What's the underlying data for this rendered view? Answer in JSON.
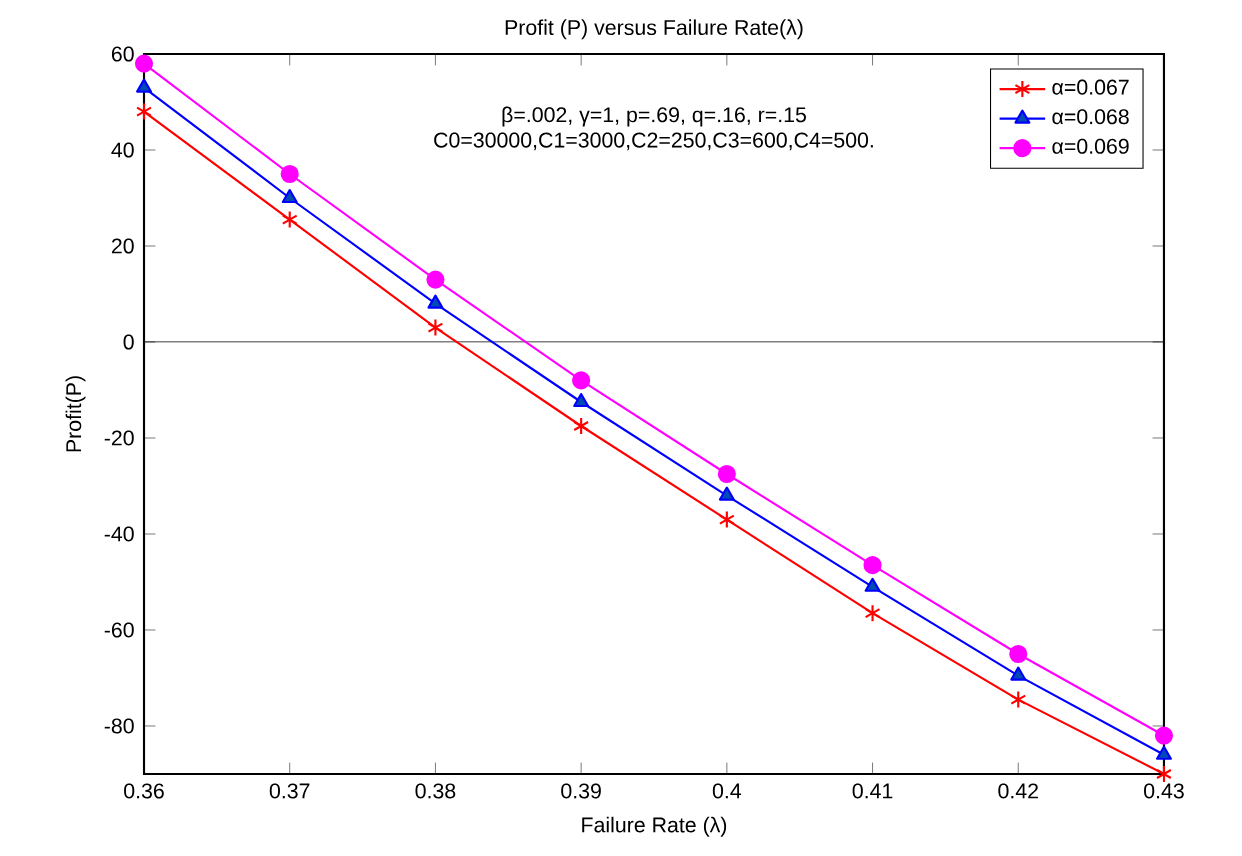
{
  "chart_data": {
    "type": "line",
    "title": "Profit (P) versus Failure Rate(λ)",
    "xlabel": "Failure Rate (λ)",
    "ylabel": "Profit(P)",
    "annotations": [
      "β=.002, γ=1, p=.69, q=.16, r=.15",
      "C0=30000,C1=3000,C2=250,C3=600,C4=500."
    ],
    "x": [
      0.36,
      0.37,
      0.38,
      0.39,
      0.4,
      0.41,
      0.42,
      0.43
    ],
    "series": [
      {
        "name": "α=0.067",
        "color": "#ff0000",
        "marker": "cross",
        "values": [
          48,
          25.5,
          3,
          -17.5,
          -37,
          -56.5,
          -74.5,
          -90
        ]
      },
      {
        "name": "α=0.068",
        "color": "#0000ff",
        "marker": "triangle",
        "values": [
          53,
          30,
          8,
          -12.5,
          -32,
          -51,
          -69.5,
          -86
        ]
      },
      {
        "name": "α=0.069",
        "color": "#ff00ff",
        "marker": "circle",
        "values": [
          58,
          35,
          13,
          -8,
          -27.5,
          -46.5,
          -65,
          -82
        ]
      }
    ],
    "xlim": [
      0.36,
      0.43
    ],
    "ylim": [
      -90,
      60
    ],
    "xticks": [
      0.36,
      0.37,
      0.38,
      0.39,
      0.4,
      0.41,
      0.42,
      0.43
    ],
    "yticks": [
      -80,
      -60,
      -40,
      -20,
      0,
      20,
      40,
      60
    ],
    "ref_lines": [
      {
        "axis": "y",
        "value": 0,
        "color": "#000000"
      }
    ],
    "legend": "top right",
    "grid": false,
    "line_style": "solid"
  }
}
